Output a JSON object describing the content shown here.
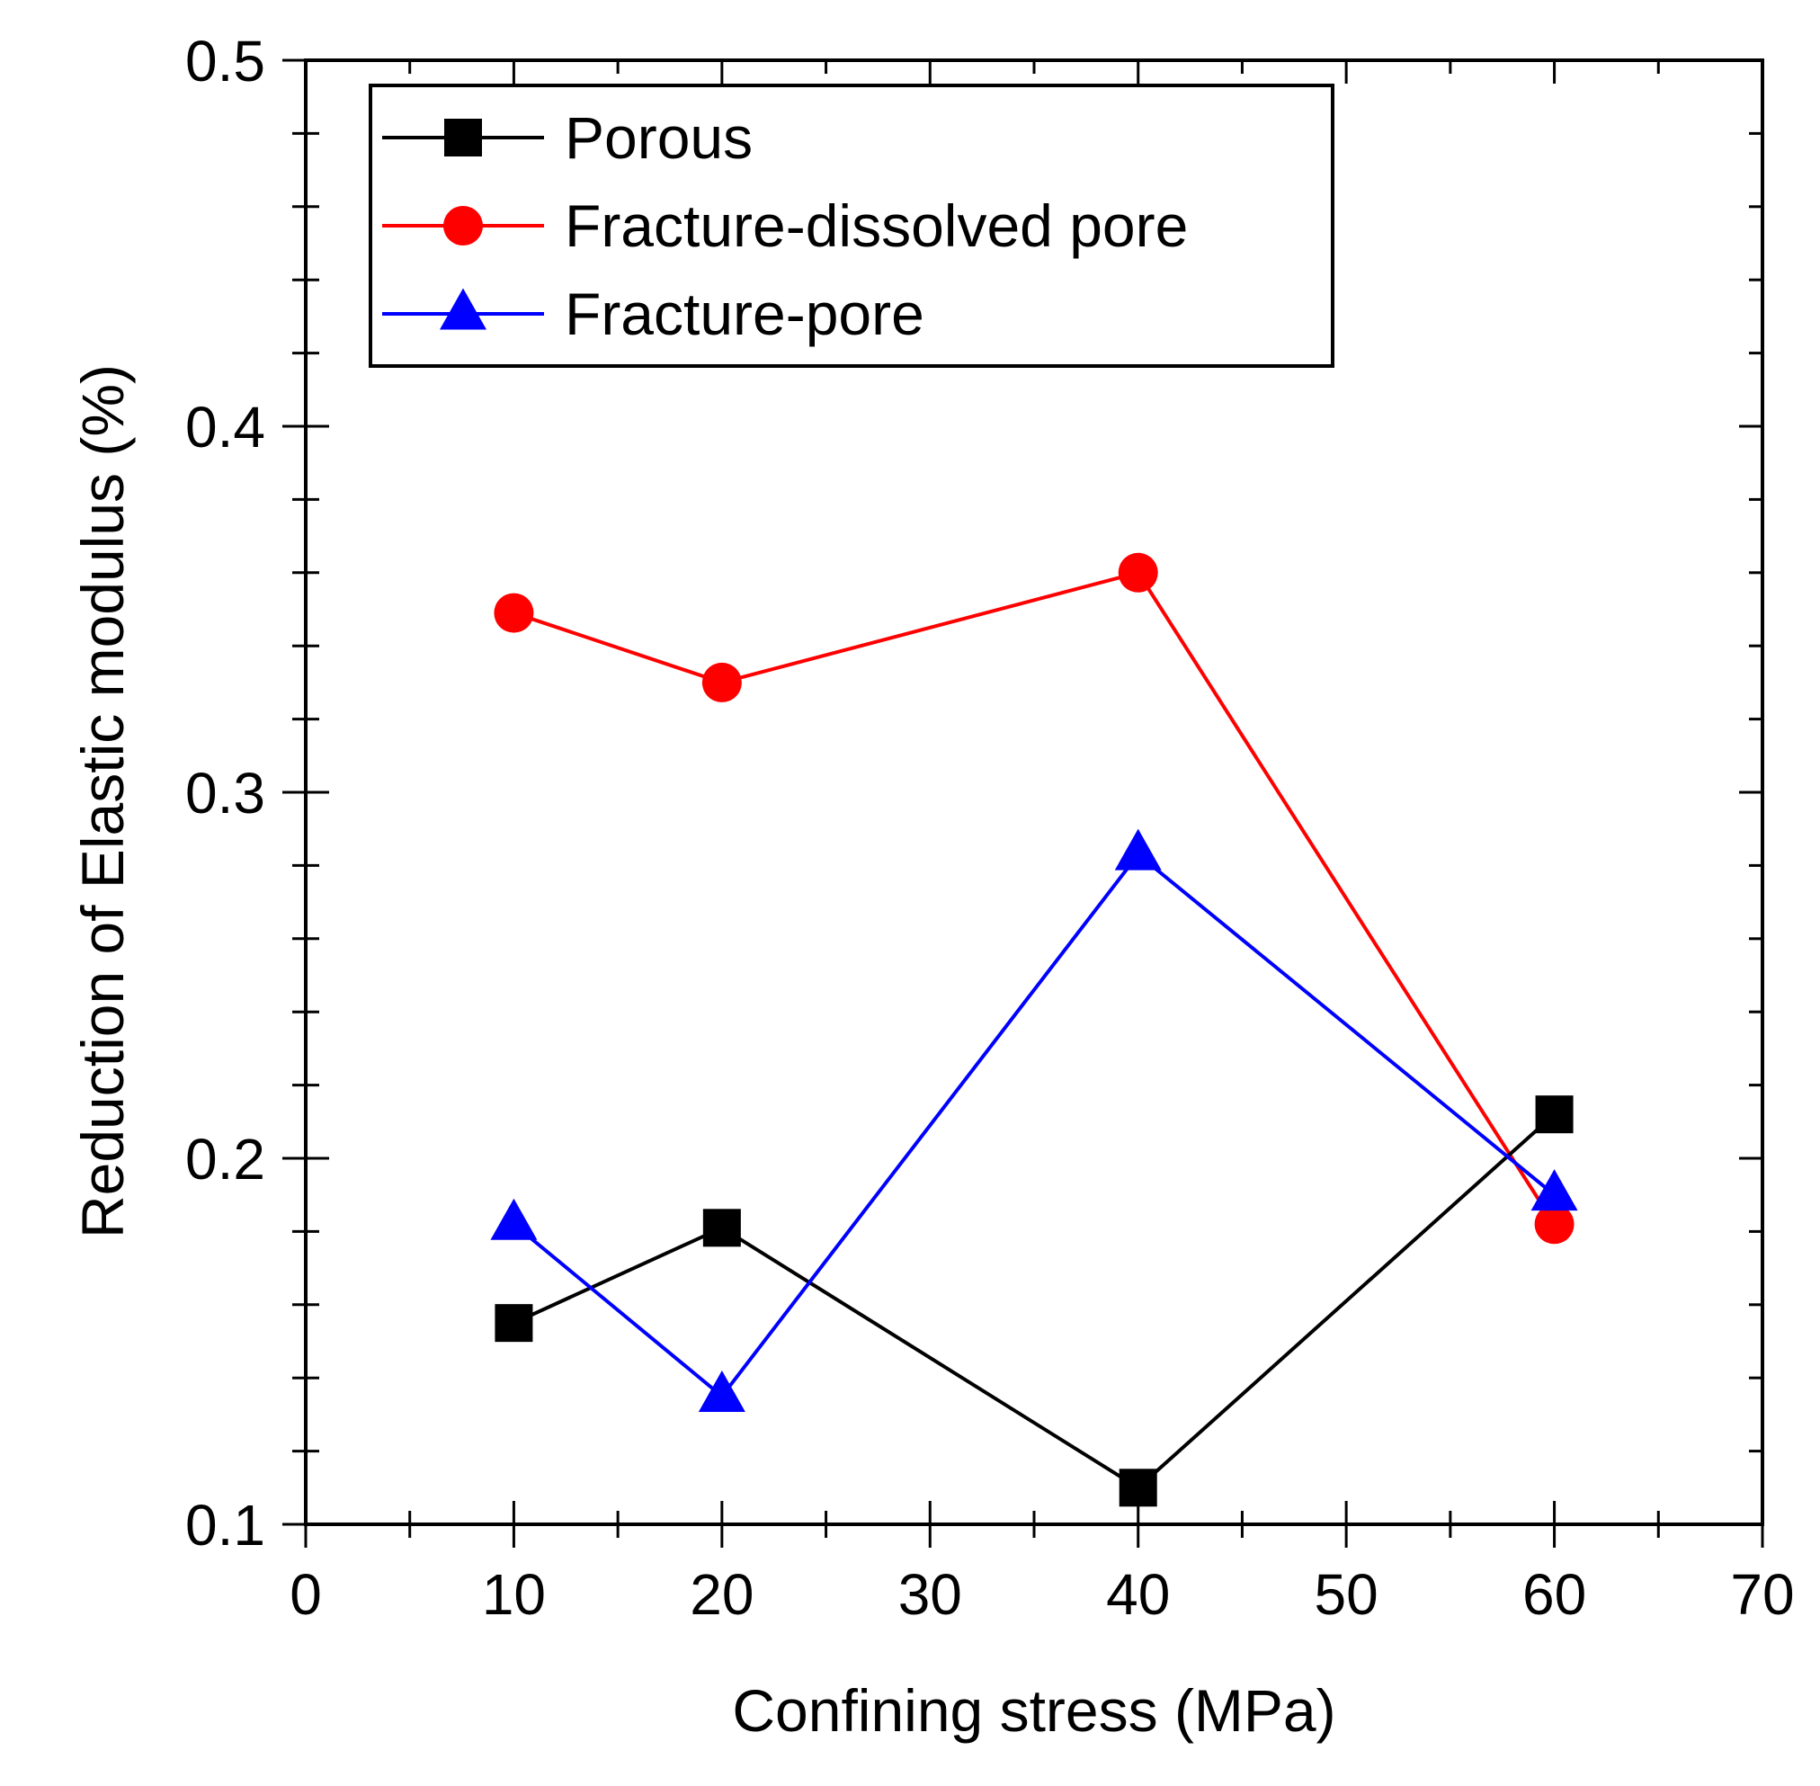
{
  "chart_data": {
    "type": "line",
    "title": "",
    "xlabel": "Confining stress (MPa)",
    "ylabel": "Reduction of Elastic modulus (%)",
    "xlim": [
      0,
      70
    ],
    "ylim": [
      0.1,
      0.5
    ],
    "x_major_ticks": [
      0,
      10,
      20,
      30,
      40,
      50,
      60,
      70
    ],
    "x_minor_ticks": [
      5,
      15,
      25,
      35,
      45,
      55,
      65
    ],
    "x_tick_labels": [
      "0",
      "10",
      "20",
      "30",
      "40",
      "50",
      "60",
      "70"
    ],
    "y_major_ticks": [
      0.1,
      0.2,
      0.3,
      0.4,
      0.5
    ],
    "y_minor_ticks": [
      0.12,
      0.14,
      0.16,
      0.18,
      0.22,
      0.24,
      0.26,
      0.28,
      0.32,
      0.34,
      0.36,
      0.38,
      0.42,
      0.44,
      0.46,
      0.48
    ],
    "y_tick_labels": [
      "0.1",
      "0.2",
      "0.3",
      "0.4",
      "0.5"
    ],
    "grid": false,
    "legend_position": "top-left",
    "series": [
      {
        "name": "Porous",
        "color": "#000000",
        "marker": "square",
        "x": [
          10,
          20,
          40,
          60
        ],
        "y": [
          0.155,
          0.181,
          0.11,
          0.212
        ]
      },
      {
        "name": "Fracture-dissolved pore",
        "color": "#ff0000",
        "marker": "circle",
        "x": [
          10,
          20,
          40,
          60
        ],
        "y": [
          0.349,
          0.33,
          0.36,
          0.182
        ]
      },
      {
        "name": "Fracture-pore",
        "color": "#0000ff",
        "marker": "triangle",
        "x": [
          10,
          20,
          40,
          60
        ],
        "y": [
          0.182,
          0.135,
          0.283,
          0.19
        ]
      }
    ]
  }
}
